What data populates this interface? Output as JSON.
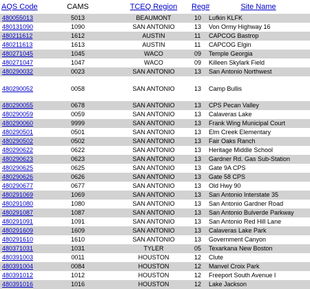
{
  "headers": {
    "aqs": "AQS Code",
    "cams": "CAMS",
    "region": "TCEQ Region",
    "reg": "Reg#",
    "site": "Site Name"
  },
  "rows": [
    {
      "aqs": "480055013",
      "cams": "5013",
      "region": "BEAUMONT",
      "reg": "10",
      "site": "Lufkin KLFK"
    },
    {
      "aqs": "480131090",
      "cams": "1090",
      "region": "SAN ANTONIO",
      "reg": "13",
      "site": "Von Ormy Highway 16"
    },
    {
      "aqs": "480211612",
      "cams": "1612",
      "region": "AUSTIN",
      "reg": "11",
      "site": "CAPCOG Bastrop"
    },
    {
      "aqs": "480211613",
      "cams": "1613",
      "region": "AUSTIN",
      "reg": "11",
      "site": "CAPCOG Elgin"
    },
    {
      "aqs": "480271045",
      "cams": "1045",
      "region": "WACO",
      "reg": "09",
      "site": "Temple Georgia"
    },
    {
      "aqs": "480271047",
      "cams": "1047",
      "region": "WACO",
      "reg": "09",
      "site": "Killeen Skylark Field"
    },
    {
      "aqs": "480290032",
      "cams": "0023",
      "region": "SAN ANTONIO",
      "reg": "13",
      "site": "San Antonio Northwest"
    },
    {
      "aqs": "480290052",
      "cams": "0058",
      "region": "SAN ANTONIO",
      "reg": "13",
      "site": "Camp Bullis",
      "tall": true
    },
    {
      "aqs": "480290055",
      "cams": "0678",
      "region": "SAN ANTONIO",
      "reg": "13",
      "site": "CPS Pecan Valley"
    },
    {
      "aqs": "480290059",
      "cams": "0059",
      "region": "SAN ANTONIO",
      "reg": "13",
      "site": "Calaveras Lake"
    },
    {
      "aqs": "480290060",
      "cams": "9999",
      "region": "SAN ANTONIO",
      "reg": "13",
      "site": "Frank Wing Municipal Court"
    },
    {
      "aqs": "480290501",
      "cams": "0501",
      "region": "SAN ANTONIO",
      "reg": "13",
      "site": "Elm Creek Elementary"
    },
    {
      "aqs": "480290502",
      "cams": "0502",
      "region": "SAN ANTONIO",
      "reg": "13",
      "site": "Fair Oaks Ranch"
    },
    {
      "aqs": "480290622",
      "cams": "0622",
      "region": "SAN ANTONIO",
      "reg": "13",
      "site": "Heritage Middle School"
    },
    {
      "aqs": "480290623",
      "cams": "0623",
      "region": "SAN ANTONIO",
      "reg": "13",
      "site": "Gardner Rd. Gas Sub-Station"
    },
    {
      "aqs": "480290625",
      "cams": "0625",
      "region": "SAN ANTONIO",
      "reg": "13",
      "site": "Gate 9A CPS"
    },
    {
      "aqs": "480290626",
      "cams": "0626",
      "region": "SAN ANTONIO",
      "reg": "13",
      "site": "Gate 58 CPS"
    },
    {
      "aqs": "480290677",
      "cams": "0677",
      "region": "SAN ANTONIO",
      "reg": "13",
      "site": "Old Hwy 90"
    },
    {
      "aqs": "480291069",
      "cams": "1069",
      "region": "SAN ANTONIO",
      "reg": "13",
      "site": "San Antonio Interstate 35"
    },
    {
      "aqs": "480291080",
      "cams": "1080",
      "region": "SAN ANTONIO",
      "reg": "13",
      "site": "San Antonio Gardner Road"
    },
    {
      "aqs": "480291087",
      "cams": "1087",
      "region": "SAN ANTONIO",
      "reg": "13",
      "site": "San Antonio Bulverde Parkway"
    },
    {
      "aqs": "480291091",
      "cams": "1091",
      "region": "SAN ANTONIO",
      "reg": "13",
      "site": "San Antonio Red Hill Lane"
    },
    {
      "aqs": "480291609",
      "cams": "1609",
      "region": "SAN ANTONIO",
      "reg": "13",
      "site": "Calaveras Lake Park"
    },
    {
      "aqs": "480291610",
      "cams": "1610",
      "region": "SAN ANTONIO",
      "reg": "13",
      "site": "Government Canyon"
    },
    {
      "aqs": "480371031",
      "cams": "1031",
      "region": "TYLER",
      "reg": "05",
      "site": "Texarkana New Boston"
    },
    {
      "aqs": "480391003",
      "cams": "0011",
      "region": "HOUSTON",
      "reg": "12",
      "site": "Clute"
    },
    {
      "aqs": "480391004",
      "cams": "0084",
      "region": "HOUSTON",
      "reg": "12",
      "site": "Manvel Croix Park"
    },
    {
      "aqs": "480391012",
      "cams": "1012",
      "region": "HOUSTON",
      "reg": "12",
      "site": "Freeport South Avenue I"
    },
    {
      "aqs": "480391016",
      "cams": "1016",
      "region": "HOUSTON",
      "reg": "12",
      "site": "Lake Jackson"
    }
  ]
}
